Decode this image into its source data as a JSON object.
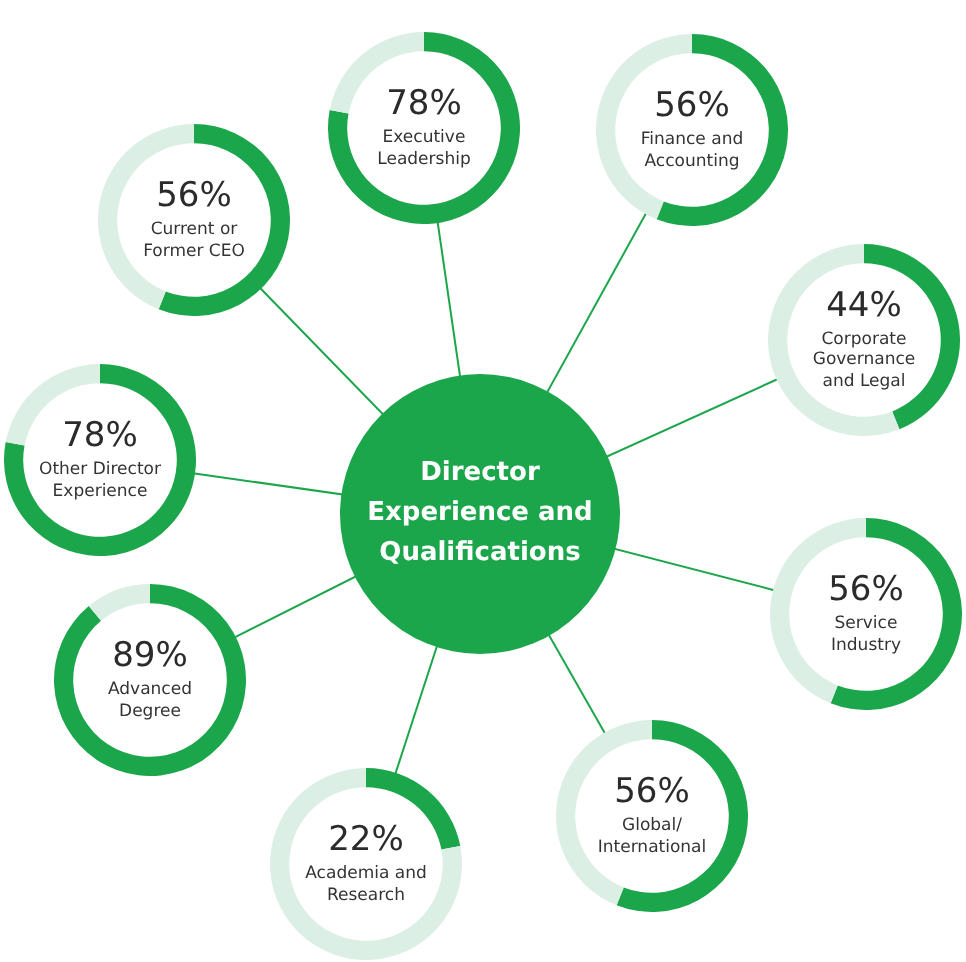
{
  "chart_data": [
    {
      "type": "donut",
      "title": "Executive Leadership",
      "categories": [
        null,
        null
      ],
      "values": [
        78,
        22
      ],
      "colors": [
        "#1ba64b",
        "#dcefe4"
      ],
      "value_labels": [
        "78%",
        null
      ]
    },
    {
      "type": "donut",
      "title": "Finance and Accounting",
      "categories": [
        null,
        null
      ],
      "values": [
        56,
        44
      ],
      "colors": [
        "#1ba64b",
        "#dcefe4"
      ],
      "value_labels": [
        "56%",
        null
      ]
    },
    {
      "type": "donut",
      "title": "Corporate Governance and Legal",
      "categories": [
        null,
        null
      ],
      "values": [
        44,
        56
      ],
      "colors": [
        "#1ba64b",
        "#dcefe4"
      ],
      "value_labels": [
        "44%",
        null
      ]
    },
    {
      "type": "donut",
      "title": "Service Industry",
      "categories": [
        null,
        null
      ],
      "values": [
        56,
        44
      ],
      "colors": [
        "#1ba64b",
        "#dcefe4"
      ],
      "value_labels": [
        "56%",
        null
      ]
    },
    {
      "type": "donut",
      "title": "Global/ International",
      "categories": [
        null,
        null
      ],
      "values": [
        56,
        44
      ],
      "colors": [
        "#1ba64b",
        "#dcefe4"
      ],
      "value_labels": [
        "56%",
        null
      ]
    },
    {
      "type": "donut",
      "title": "Academia and Research",
      "categories": [
        null,
        null
      ],
      "values": [
        22,
        78
      ],
      "colors": [
        "#1ba64b",
        "#dcefe4"
      ],
      "value_labels": [
        "22%",
        null
      ]
    },
    {
      "type": "donut",
      "title": "Advanced Degree",
      "categories": [
        null,
        null
      ],
      "values": [
        89,
        11
      ],
      "colors": [
        "#1ba64b",
        "#dcefe4"
      ],
      "value_labels": [
        "89%",
        null
      ]
    },
    {
      "type": "donut",
      "title": "Other Director Experience",
      "categories": [
        null,
        null
      ],
      "values": [
        78,
        22
      ],
      "colors": [
        "#1ba64b",
        "#dcefe4"
      ],
      "value_labels": [
        "78%",
        null
      ]
    },
    {
      "type": "donut",
      "title": "Current or Former CEO",
      "categories": [
        null,
        null
      ],
      "values": [
        56,
        44
      ],
      "colors": [
        "#1ba64b",
        "#dcefe4"
      ],
      "value_labels": [
        "56%",
        null
      ]
    },
    {
      "type": "other",
      "title": "Director Experience and Qualifications"
    }
  ]
}
